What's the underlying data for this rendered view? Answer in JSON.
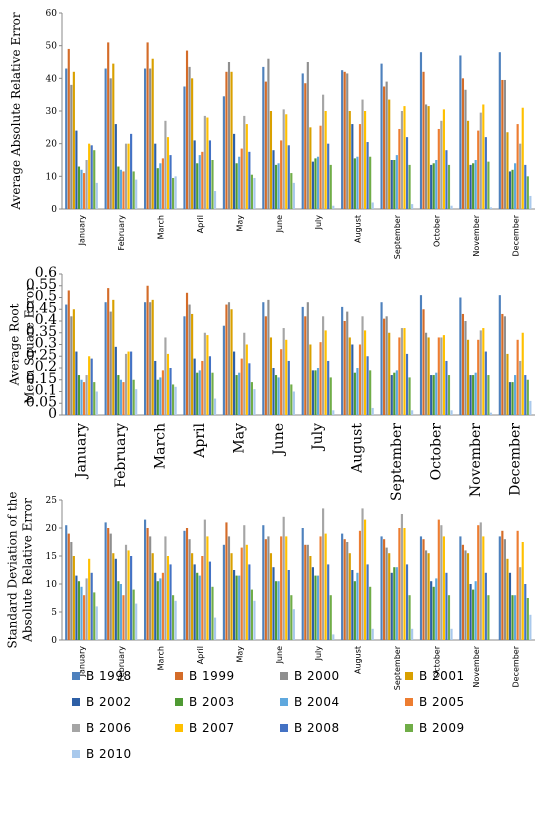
{
  "series_colors": [
    "#4e81bd",
    "#d46c29",
    "#8f8f8f",
    "#d9a000",
    "#2d5fa6",
    "#4f9a33",
    "#5fa8de",
    "#ed7d31",
    "#a5a5a5",
    "#ffc000",
    "#4472c4",
    "#70ad47",
    "#a9c9ec"
  ],
  "legend": {
    "items": [
      "B 1998",
      "B 1999",
      "B 2000",
      "B 2001",
      "B 2002",
      "B 2003",
      "B 2004",
      "B 2005",
      "B 2006",
      "B 2007",
      "B 2008",
      "B 2009",
      "B 2010"
    ]
  },
  "chart_data": [
    {
      "type": "bar",
      "ylabel": "Average Absolute Relative Error",
      "ylim": [
        0,
        60
      ],
      "yticks": [
        0,
        10,
        20,
        30,
        40,
        50,
        60
      ],
      "grid": false,
      "categories": [
        "January",
        "February",
        "March",
        "April",
        "May",
        "June",
        "July",
        "August",
        "September",
        "October",
        "November",
        "December"
      ],
      "series": [
        {
          "name": "B 1998",
          "values": [
            43,
            43,
            43,
            37.5,
            34.5,
            43.5,
            41.5,
            42.5,
            44.5,
            48,
            47,
            48
          ]
        },
        {
          "name": "B 1999",
          "values": [
            49,
            51,
            51,
            48.5,
            42,
            39,
            38.5,
            42,
            37.5,
            42,
            40,
            39.5
          ]
        },
        {
          "name": "B 2000",
          "values": [
            38,
            40,
            43,
            43.5,
            45,
            46,
            45,
            41.5,
            39,
            32,
            36.5,
            39.5
          ]
        },
        {
          "name": "B 2001",
          "values": [
            42,
            44.5,
            46,
            40,
            42,
            30,
            25,
            30,
            33.5,
            31.5,
            27,
            23.5
          ]
        },
        {
          "name": "B 2002",
          "values": [
            24,
            26,
            20,
            21,
            23,
            18,
            14.5,
            26,
            15,
            13.5,
            13.5,
            11.5
          ]
        },
        {
          "name": "B 2003",
          "values": [
            13,
            13,
            12.5,
            14,
            14,
            13.5,
            15.5,
            15.5,
            15,
            14,
            14,
            12
          ]
        },
        {
          "name": "B 2004",
          "values": [
            12,
            12,
            14,
            16.5,
            16,
            14,
            16,
            16,
            16.5,
            15,
            15,
            14
          ]
        },
        {
          "name": "B 2005",
          "values": [
            11,
            11.5,
            15.5,
            17.5,
            18.5,
            21,
            25.5,
            26,
            24.5,
            24.5,
            24,
            26
          ]
        },
        {
          "name": "B 2006",
          "values": [
            15,
            20,
            27,
            28.5,
            28.5,
            30.5,
            35,
            33.5,
            30,
            27,
            29.5,
            20
          ]
        },
        {
          "name": "B 2007",
          "values": [
            20,
            20,
            22,
            28,
            26,
            29,
            30,
            30,
            31.5,
            30.5,
            32,
            31
          ]
        },
        {
          "name": "B 2008",
          "values": [
            19.5,
            23,
            16.5,
            21,
            17.5,
            19.5,
            20,
            20.5,
            22,
            18,
            22,
            13.5
          ]
        },
        {
          "name": "B 2009",
          "values": [
            18,
            11.5,
            9.5,
            15,
            10.5,
            11,
            13.5,
            16,
            13.5,
            13.5,
            14.5,
            10
          ]
        },
        {
          "name": "B 2010",
          "values": [
            8,
            9,
            10,
            5.5,
            9.5,
            8,
            1,
            2,
            1.5,
            1,
            0.5,
            4
          ]
        }
      ]
    },
    {
      "type": "bar",
      "ylabel": "Average Root Mean Square Error",
      "ylim": [
        0,
        0.6
      ],
      "yticks": [
        0,
        0.05,
        0.1,
        0.15,
        0.2,
        0.25,
        0.3,
        0.35,
        0.4,
        0.45,
        0.5,
        0.55,
        0.6
      ],
      "yticklabels": [
        "0",
        "0.05",
        "0.1",
        "0.15",
        "0.2",
        "0.25",
        "0.3",
        "0.35",
        "0.4",
        "0.45",
        "0.5",
        "0.55",
        "0.6"
      ],
      "grid": false,
      "categories": [
        "January",
        "February",
        "March",
        "April",
        "May",
        "June",
        "July",
        "August",
        "September",
        "October",
        "November",
        "December"
      ],
      "series": [
        {
          "name": "B 1998",
          "values": [
            0.47,
            0.48,
            0.48,
            0.42,
            0.38,
            0.48,
            0.46,
            0.46,
            0.48,
            0.51,
            0.5,
            0.51
          ]
        },
        {
          "name": "B 1999",
          "values": [
            0.53,
            0.54,
            0.55,
            0.52,
            0.47,
            0.42,
            0.42,
            0.4,
            0.41,
            0.45,
            0.43,
            0.43
          ]
        },
        {
          "name": "B 2000",
          "values": [
            0.42,
            0.44,
            0.48,
            0.47,
            0.48,
            0.49,
            0.48,
            0.44,
            0.42,
            0.35,
            0.4,
            0.42
          ]
        },
        {
          "name": "B 2001",
          "values": [
            0.45,
            0.49,
            0.49,
            0.43,
            0.45,
            0.33,
            0.3,
            0.33,
            0.35,
            0.33,
            0.32,
            0.26
          ]
        },
        {
          "name": "B 2002",
          "values": [
            0.27,
            0.29,
            0.23,
            0.24,
            0.27,
            0.2,
            0.19,
            0.3,
            0.17,
            0.17,
            0.17,
            0.14
          ]
        },
        {
          "name": "B 2003",
          "values": [
            0.17,
            0.17,
            0.15,
            0.18,
            0.17,
            0.17,
            0.19,
            0.18,
            0.18,
            0.17,
            0.17,
            0.14
          ]
        },
        {
          "name": "B 2004",
          "values": [
            0.15,
            0.15,
            0.16,
            0.19,
            0.18,
            0.16,
            0.2,
            0.2,
            0.19,
            0.18,
            0.18,
            0.17
          ]
        },
        {
          "name": "B 2005",
          "values": [
            0.14,
            0.14,
            0.19,
            0.23,
            0.24,
            0.28,
            0.31,
            0.3,
            0.33,
            0.33,
            0.32,
            0.32
          ]
        },
        {
          "name": "B 2006",
          "values": [
            0.17,
            0.26,
            0.33,
            0.35,
            0.35,
            0.37,
            0.42,
            0.42,
            0.37,
            0.33,
            0.36,
            0.23
          ]
        },
        {
          "name": "B 2007",
          "values": [
            0.25,
            0.27,
            0.26,
            0.34,
            0.3,
            0.32,
            0.36,
            0.36,
            0.37,
            0.34,
            0.37,
            0.35
          ]
        },
        {
          "name": "B 2008",
          "values": [
            0.24,
            0.27,
            0.2,
            0.25,
            0.22,
            0.23,
            0.23,
            0.25,
            0.26,
            0.23,
            0.27,
            0.17
          ]
        },
        {
          "name": "B 2009",
          "values": [
            0.14,
            0.15,
            0.13,
            0.18,
            0.14,
            0.13,
            0.16,
            0.19,
            0.16,
            0.17,
            0.17,
            0.15
          ]
        },
        {
          "name": "B 2010",
          "values": [
            0.1,
            0.11,
            0.12,
            0.07,
            0.11,
            0.1,
            0.02,
            0.03,
            0.02,
            0.02,
            0.01,
            0.06
          ]
        }
      ]
    },
    {
      "type": "bar",
      "ylabel": "Standard Deviation of the Absolute Relative Error",
      "ylim": [
        0,
        25
      ],
      "yticks": [
        0,
        5,
        10,
        15,
        20,
        25
      ],
      "grid": false,
      "categories": [
        "January",
        "February",
        "March",
        "April",
        "May",
        "June",
        "July",
        "August",
        "September",
        "October",
        "November",
        "December"
      ],
      "series": [
        {
          "name": "B 1998",
          "values": [
            20.5,
            21,
            21.5,
            19.5,
            17,
            20.5,
            20,
            19,
            18.5,
            18.5,
            18.5,
            18.5
          ]
        },
        {
          "name": "B 1999",
          "values": [
            19,
            20,
            20,
            20,
            21,
            18,
            17,
            18,
            18,
            18,
            17,
            19.5
          ]
        },
        {
          "name": "B 2000",
          "values": [
            17.5,
            19,
            18.5,
            18,
            18.5,
            18.5,
            17,
            17.5,
            16.5,
            16,
            16,
            18
          ]
        },
        {
          "name": "B 2001",
          "values": [
            15,
            15.5,
            15.5,
            15.5,
            15.5,
            15.5,
            15,
            15.5,
            15.5,
            15.5,
            15.5,
            14.5
          ]
        },
        {
          "name": "B 2002",
          "values": [
            11.5,
            14.5,
            12,
            13.5,
            12.5,
            13,
            13,
            12.5,
            12,
            10.5,
            10,
            12
          ]
        },
        {
          "name": "B 2003",
          "values": [
            10.5,
            10.5,
            10.5,
            12,
            11.5,
            10.5,
            11.5,
            10.5,
            13,
            9.5,
            9,
            8
          ]
        },
        {
          "name": "B 2004",
          "values": [
            9.5,
            10,
            11,
            11.5,
            11.5,
            10.5,
            11.5,
            12,
            13,
            11,
            10.5,
            8
          ]
        },
        {
          "name": "B 2005",
          "values": [
            8,
            8,
            12,
            15,
            16.5,
            18.5,
            18.5,
            19.5,
            20,
            21.5,
            20.5,
            19.5
          ]
        },
        {
          "name": "B 2006",
          "values": [
            11,
            17,
            18.5,
            21.5,
            20.5,
            22,
            23.5,
            23.5,
            22.5,
            20.5,
            21,
            13
          ]
        },
        {
          "name": "B 2007",
          "values": [
            14.5,
            16,
            15,
            18.5,
            17,
            18.5,
            19,
            21.5,
            20,
            18.5,
            18.5,
            17.5
          ]
        },
        {
          "name": "B 2008",
          "values": [
            12,
            15,
            13.5,
            14,
            13.5,
            12.5,
            13.5,
            13.5,
            13.5,
            12,
            12,
            10
          ]
        },
        {
          "name": "B 2009",
          "values": [
            8.5,
            9,
            8,
            9.5,
            9,
            8,
            8,
            9.5,
            8,
            8,
            8,
            7.5
          ]
        },
        {
          "name": "B 2010",
          "values": [
            6,
            6.5,
            7,
            4,
            7,
            5.5,
            1,
            2,
            2,
            2,
            0,
            4.5
          ]
        }
      ]
    }
  ]
}
